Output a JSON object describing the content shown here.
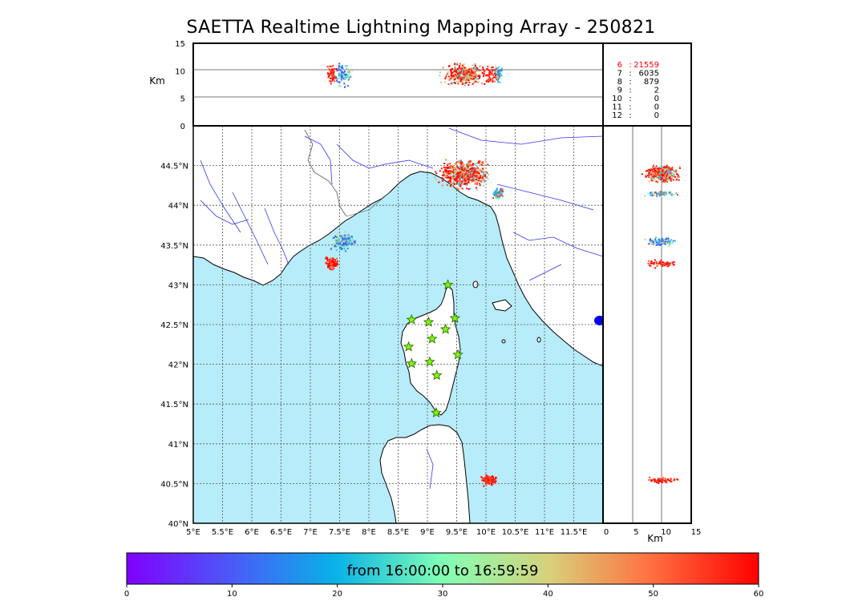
{
  "title": "SAETTA Realtime Lightning Mapping Array - 250821",
  "colors": {
    "sea": "#b7ecfa",
    "land": "#ffffff",
    "rivers": "#3333ee",
    "grid": "#555555",
    "station_fill": "#7cfc00",
    "highlight_row": "#ff0000"
  },
  "altitude_panel": {
    "ylabel": "Km",
    "yticks": [
      "0",
      "5",
      "10",
      "15"
    ]
  },
  "side_panel": {
    "xlabel": "Km",
    "xticks": [
      "0",
      "5",
      "10",
      "15"
    ]
  },
  "station_counts": [
    {
      "n": "6",
      "sep": ":",
      "value": "21559",
      "highlight": true
    },
    {
      "n": "7",
      "sep": ":",
      "value": "6035",
      "highlight": false
    },
    {
      "n": "8",
      "sep": ":",
      "value": "879",
      "highlight": false
    },
    {
      "n": "9",
      "sep": ":",
      "value": "2",
      "highlight": false
    },
    {
      "n": "10",
      "sep": ":",
      "value": "0",
      "highlight": false
    },
    {
      "n": "11",
      "sep": ":",
      "value": "0",
      "highlight": false
    },
    {
      "n": "12",
      "sep": ":",
      "value": "0",
      "highlight": false
    }
  ],
  "map": {
    "lon_ticks": [
      "5°E",
      "5.5°E",
      "6°E",
      "6.5°E",
      "7°E",
      "7.5°E",
      "8°E",
      "8.5°E",
      "9°E",
      "9.5°E",
      "10°E",
      "10.5°E",
      "11°E",
      "11.5°E"
    ],
    "lat_ticks": [
      "40°N",
      "40.5°N",
      "41°N",
      "41.5°N",
      "42°N",
      "42.5°N",
      "43°N",
      "43.5°N",
      "44°N",
      "44.5°N"
    ],
    "lon_range": [
      5.0,
      12.0
    ],
    "lat_range": [
      40.0,
      45.0
    ],
    "stations": [
      {
        "lon": 9.35,
        "lat": 43.0
      },
      {
        "lon": 8.73,
        "lat": 42.56
      },
      {
        "lon": 9.02,
        "lat": 42.53
      },
      {
        "lon": 9.47,
        "lat": 42.58
      },
      {
        "lon": 9.31,
        "lat": 42.44
      },
      {
        "lon": 9.08,
        "lat": 42.32
      },
      {
        "lon": 8.68,
        "lat": 42.22
      },
      {
        "lon": 9.52,
        "lat": 42.12
      },
      {
        "lon": 8.73,
        "lat": 42.01
      },
      {
        "lon": 9.04,
        "lat": 42.03
      },
      {
        "lon": 9.16,
        "lat": 41.86
      },
      {
        "lon": 9.15,
        "lat": 41.39
      }
    ],
    "clusters": [
      {
        "lon": 9.6,
        "lat": 44.4,
        "color": "red-orange"
      },
      {
        "lon": 10.2,
        "lat": 44.15,
        "color": "cyan"
      },
      {
        "lon": 7.55,
        "lat": 43.55,
        "color": "blue-cyan"
      },
      {
        "lon": 7.35,
        "lat": 43.28,
        "color": "red"
      },
      {
        "lon": 10.05,
        "lat": 40.55,
        "color": "red"
      }
    ]
  },
  "colorbar": {
    "label": "from 16:00:00 to 16:59:59",
    "ticks": [
      "0",
      "10",
      "20",
      "30",
      "40",
      "50",
      "60"
    ],
    "range": [
      0,
      60
    ]
  }
}
